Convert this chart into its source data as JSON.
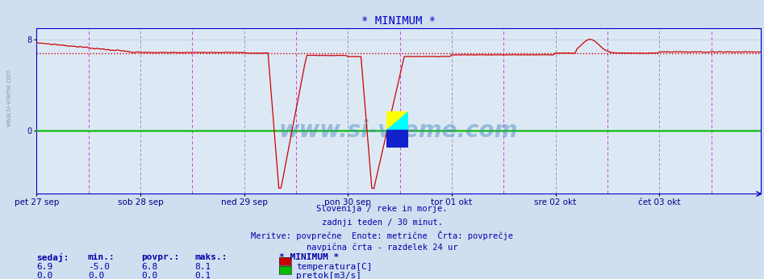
{
  "title": "* MINIMUM *",
  "title_color": "#0000cc",
  "title_fontsize": 10,
  "bg_color": "#d0dff0",
  "plot_bg_color": "#dde8f5",
  "axis_color": "#0000cc",
  "grid_color_h": "#b8c8e0",
  "grid_color_noon": "#888899",
  "midnight_color": "#cc44cc",
  "x_labels": [
    "pet 27 sep",
    "sob 28 sep",
    "ned 29 sep",
    "pon 30 sep",
    "tor 01 okt",
    "sre 02 okt",
    "čet 03 okt"
  ],
  "x_label_color": "#000088",
  "ylim_min": -5.5,
  "ylim_max": 9.0,
  "ytick_vals": [
    0,
    8
  ],
  "temp_color": "#cc0000",
  "flow_color": "#00bb00",
  "avg_color": "#cc0000",
  "avg_value": 6.8,
  "watermark": "www.si-vreme.com",
  "watermark_color": "#4488bb",
  "watermark_alpha": 0.45,
  "subtitle_lines": [
    "Slovenija / reke in morje.",
    "zadnji teden / 30 minut.",
    "Meritve: povprečne  Enote: metrične  Črta: povprečje",
    "navpična črta - razdelek 24 ur"
  ],
  "subtitle_color": "#0000aa",
  "subtitle_fontsize": 7.5,
  "legend_title": "* MINIMUM *",
  "legend_items": [
    {
      "label": "temperatura[C]",
      "color": "#cc0000"
    },
    {
      "label": "pretok[m3/s]",
      "color": "#00bb00"
    }
  ],
  "stats_headers": [
    "sedaj:",
    "min.:",
    "povpr.:",
    "maks.:"
  ],
  "stats_rows": [
    [
      6.9,
      -5.0,
      6.8,
      8.1
    ],
    [
      0.0,
      0.0,
      0.0,
      0.1
    ]
  ],
  "stats_color": "#0000aa",
  "stats_fontsize": 8,
  "n_points": 336,
  "day_tick_positions": [
    0,
    48,
    96,
    144,
    192,
    240,
    288
  ],
  "midnight_tick_positions": [
    24,
    72,
    120,
    168,
    216,
    264,
    312
  ]
}
